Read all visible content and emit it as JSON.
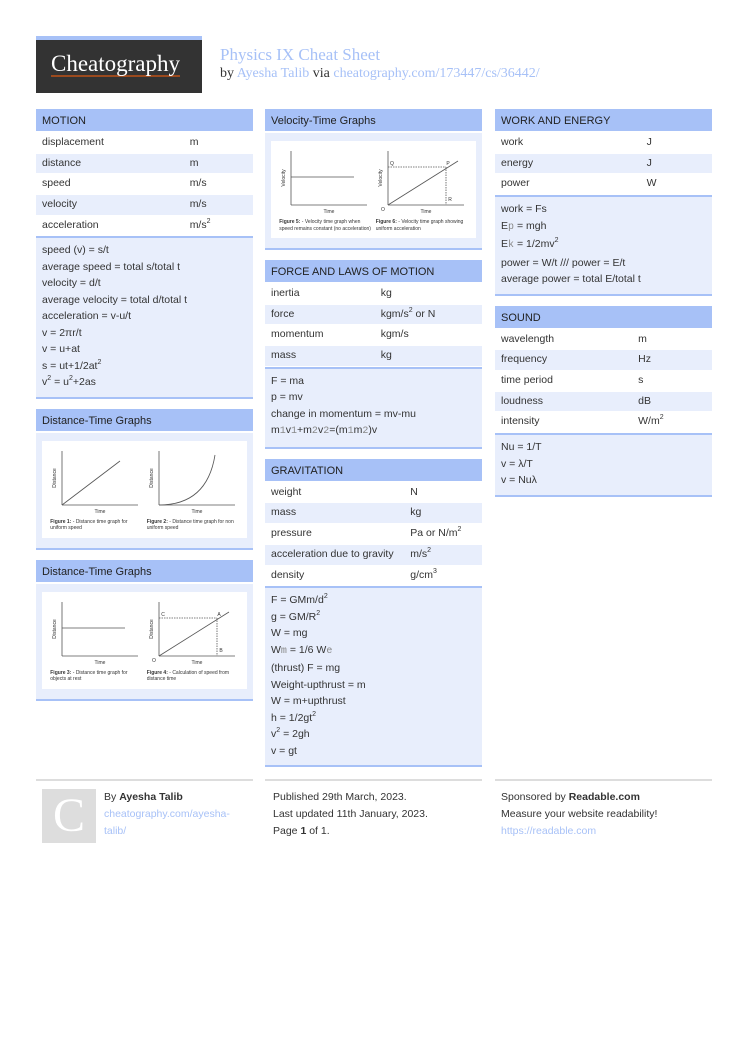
{
  "header": {
    "logo": "Cheatography",
    "title": "Physics IX Cheat Sheet",
    "by": "by",
    "author": "Ayesha Talib",
    "via": "via",
    "url": "cheatography.com/173447/cs/36442/"
  },
  "colors": {
    "accent": "#a7c1f7",
    "logo_bg": "#333333",
    "row_alt": "#e8eefc"
  },
  "columns": [
    [
      {
        "title": "MOTION",
        "rows": [
          [
            "displacement",
            "m"
          ],
          [
            "distance",
            "m"
          ],
          [
            "speed",
            "m/s"
          ],
          [
            "velocity",
            "m/s"
          ],
          [
            "acceleration",
            [
              "m/s",
              {
                "t": "2",
                "s": "sup"
              }
            ]
          ]
        ],
        "formulas": [
          "speed (v) = s/t",
          "average speed = total s/total t",
          "velocity = d/t",
          "average velocity = total d/total t",
          "acceleration = v-u/t",
          "v = 2πr/t",
          "v = u+at",
          [
            "s = ut+1/2at",
            {
              "t": "2",
              "s": "sup"
            }
          ],
          [
            "v",
            {
              "t": "2",
              "s": "sup"
            },
            " = u",
            {
              "t": "2",
              "s": "sup"
            },
            "+2as"
          ]
        ]
      },
      {
        "title": "Distance-Time Graphs",
        "figure": [
          {
            "type": "line",
            "ylabel": "Distance",
            "xlabel": "Time",
            "caption_bold": "Figure 1:",
            "caption": " - Distance time graph for uniform speed"
          },
          {
            "type": "curve",
            "ylabel": "Distance",
            "xlabel": "Time",
            "caption_bold": "Figure 2:",
            "caption": " - Distance time graph for non uniform speed"
          }
        ]
      },
      {
        "title": "Distance-Time Graphs",
        "figure": [
          {
            "type": "flat",
            "ylabel": "Distance",
            "xlabel": "Time",
            "caption_bold": "Figure 3:",
            "caption": " - Distance time graph for objects at rest"
          },
          {
            "type": "labeled",
            "ylabel": "Distance",
            "xlabel": "Time",
            "points": [
              "C",
              "A",
              "B",
              "O"
            ],
            "caption_bold": "Figure 4:",
            "caption": " - Calculation of speed from distance time"
          }
        ]
      }
    ],
    [
      {
        "title": "Velocity-Time Graphs",
        "figure": [
          {
            "type": "flat",
            "ylabel": "Velocity",
            "xlabel": "Time",
            "caption_bold": "Figure 5:",
            "caption": " - Velocity time graph when speed remains constant (no acceleration)"
          },
          {
            "type": "labeled",
            "ylabel": "Velocity",
            "xlabel": "Time",
            "points": [
              "Q",
              "P",
              "R",
              "O"
            ],
            "caption_bold": "Figure 6:",
            "caption": " - Velocity time graph showing uniform acceleration"
          }
        ]
      },
      {
        "title": "FORCE AND LAWS OF MOTION",
        "rows": [
          [
            "inertia",
            "kg"
          ],
          [
            "force",
            [
              "kgm/s",
              {
                "t": "2",
                "s": "sup"
              },
              " or N"
            ]
          ],
          [
            "momentum",
            "kgm/s"
          ],
          [
            "mass",
            "kg"
          ]
        ],
        "formulas": [
          "F = ma",
          "p = mv",
          "change in momentum = mv-mu",
          [
            "m",
            {
              "t": "1",
              "s": "sub"
            },
            "v",
            {
              "t": "1",
              "s": "sub"
            },
            "+m",
            {
              "t": "2",
              "s": "sub"
            },
            "v",
            {
              "t": "2",
              "s": "sub"
            },
            "=(m",
            {
              "t": "1",
              "s": "sub"
            },
            "m",
            {
              "t": "2",
              "s": "sub"
            },
            ")v"
          ]
        ]
      },
      {
        "title": "GRAVITATION",
        "rows": [
          [
            "weight",
            "N"
          ],
          [
            "mass",
            "kg"
          ],
          [
            "pressure",
            [
              "Pa or N/m",
              {
                "t": "2",
                "s": "sup"
              }
            ]
          ],
          [
            "acceleration due to gravity",
            [
              "m/s",
              {
                "t": "2",
                "s": "sup"
              }
            ]
          ],
          [
            "density",
            [
              "g/cm",
              {
                "t": "3",
                "s": "sup"
              }
            ]
          ]
        ],
        "formulas": [
          [
            "F = GMm/d",
            {
              "t": "2",
              "s": "sup"
            }
          ],
          [
            "g = GM/R",
            {
              "t": "2",
              "s": "sup"
            }
          ],
          "W = mg",
          [
            "W",
            {
              "t": "m",
              "s": "sub"
            },
            " = 1/6 W",
            {
              "t": "e",
              "s": "sub"
            }
          ],
          "(thrust) F = mg",
          "Weight-upthrust = m",
          "W = m+upthrust",
          [
            "h = 1/2gt",
            {
              "t": "2",
              "s": "sup"
            }
          ],
          [
            "v",
            {
              "t": "2",
              "s": "sup"
            },
            " = 2gh"
          ],
          "v = gt"
        ]
      }
    ],
    [
      {
        "title": "WORK AND ENERGY",
        "rows": [
          [
            "work",
            "J"
          ],
          [
            "energy",
            "J"
          ],
          [
            "power",
            "W"
          ]
        ],
        "formulas": [
          "work = Fs",
          [
            "E",
            {
              "t": "p",
              "s": "sub"
            },
            " = mgh"
          ],
          [
            "E",
            {
              "t": "k",
              "s": "sub"
            },
            " = 1/2mv",
            {
              "t": "2",
              "s": "sup"
            }
          ],
          "power = W/t /// power = E/t",
          "average power = total E/total t"
        ]
      },
      {
        "title": "SOUND",
        "rows": [
          [
            "wavelength",
            "m"
          ],
          [
            "frequency",
            "Hz"
          ],
          [
            "time period",
            "s"
          ],
          [
            "loudness",
            "dB"
          ],
          [
            "intensity",
            [
              "W/m",
              {
                "t": "2",
                "s": "sup"
              }
            ]
          ]
        ],
        "formulas": [
          "Nu = 1/T",
          "v = λ/T",
          "v = Nuλ"
        ]
      }
    ]
  ],
  "footer": {
    "by": "By",
    "author": "Ayesha Talib",
    "author_url1": "cheatography.com/ayesha-",
    "author_url2": "talib/",
    "avatar_letter": "C",
    "published": "Published 29th March, 2023.",
    "updated": "Last updated 11th January, 2023.",
    "page_pre": "Page ",
    "page": "1",
    "page_of": " of ",
    "pages": "1",
    "page_post": ".",
    "sponsored": "Sponsored by ",
    "sponsor": "Readable.com",
    "sponsor_text": "Measure your website readability!",
    "sponsor_url": "https://readable.com"
  }
}
